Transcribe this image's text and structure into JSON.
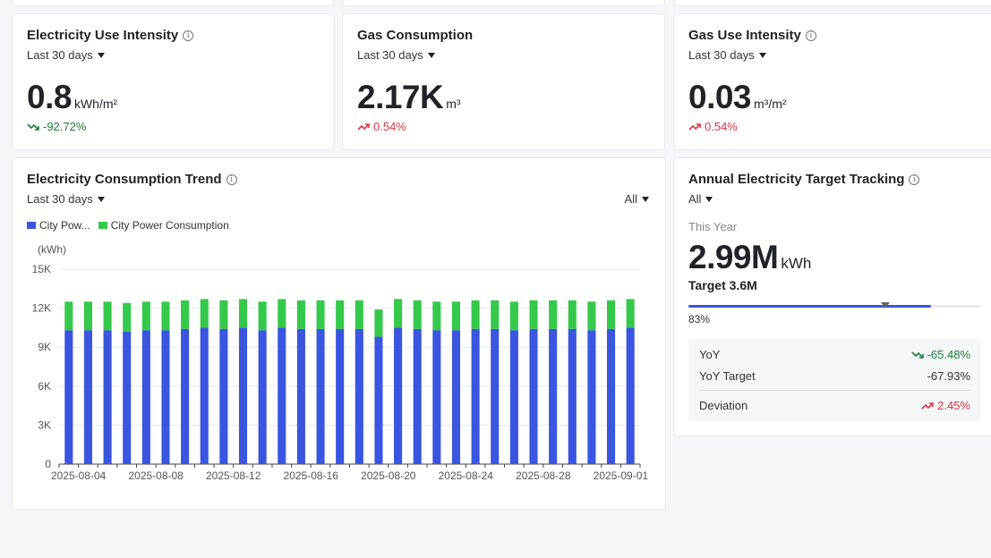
{
  "cards": {
    "elec_intensity": {
      "title": "Electricity Use Intensity",
      "period": "Last 30 days",
      "value": "0.8",
      "unit": "kWh/m²",
      "change": "-92.72%",
      "direction": "down"
    },
    "gas_consumption": {
      "title": "Gas Consumption",
      "period": "Last 30 days",
      "value": "2.17K",
      "unit": "m³",
      "change": "0.54%",
      "direction": "up"
    },
    "gas_intensity": {
      "title": "Gas Use Intensity",
      "period": "Last 30 days",
      "value": "0.03",
      "unit": "m³/m²",
      "change": "0.54%",
      "direction": "up"
    }
  },
  "trend": {
    "title": "Electricity Consumption Trend",
    "period": "Last 30 days",
    "filter": "All",
    "legend": [
      {
        "label": "City Pow...",
        "color": "#3a55e0"
      },
      {
        "label": "City Power Consumption",
        "color": "#34c94a"
      }
    ],
    "y_unit": "(kWh)"
  },
  "chart_data": {
    "type": "bar",
    "stacked": true,
    "ylabel": "(kWh)",
    "ylim": [
      0,
      15000
    ],
    "yticks": [
      "0",
      "3K",
      "6K",
      "9K",
      "12K",
      "15K"
    ],
    "ytick_values": [
      0,
      3000,
      6000,
      9000,
      12000,
      15000
    ],
    "x_tick_labels": [
      "2025-08-04",
      "2025-08-08",
      "2025-08-12",
      "2025-08-16",
      "2025-08-20",
      "2025-08-24",
      "2025-08-28",
      "2025-09-01"
    ],
    "categories": [
      "2025-08-03",
      "2025-08-04",
      "2025-08-05",
      "2025-08-06",
      "2025-08-07",
      "2025-08-08",
      "2025-08-09",
      "2025-08-10",
      "2025-08-11",
      "2025-08-12",
      "2025-08-13",
      "2025-08-14",
      "2025-08-15",
      "2025-08-16",
      "2025-08-17",
      "2025-08-18",
      "2025-08-19",
      "2025-08-20",
      "2025-08-21",
      "2025-08-22",
      "2025-08-23",
      "2025-08-24",
      "2025-08-25",
      "2025-08-26",
      "2025-08-27",
      "2025-08-28",
      "2025-08-29",
      "2025-08-30",
      "2025-08-31",
      "2025-09-01"
    ],
    "series": [
      {
        "name": "City Pow...",
        "color": "#3a55e0",
        "values": [
          10300,
          10300,
          10300,
          10200,
          10300,
          10300,
          10400,
          10500,
          10400,
          10500,
          10300,
          10500,
          10400,
          10400,
          10400,
          10400,
          9800,
          10500,
          10400,
          10300,
          10300,
          10400,
          10400,
          10300,
          10400,
          10400,
          10400,
          10300,
          10400,
          10500
        ]
      },
      {
        "name": "City Power Consumption",
        "color": "#34c94a",
        "values": [
          2200,
          2200,
          2200,
          2200,
          2200,
          2200,
          2200,
          2200,
          2200,
          2200,
          2200,
          2200,
          2200,
          2200,
          2200,
          2200,
          2100,
          2200,
          2200,
          2200,
          2200,
          2200,
          2200,
          2200,
          2200,
          2200,
          2200,
          2200,
          2200,
          2200
        ]
      }
    ]
  },
  "annual": {
    "title": "Annual Electricity Target Tracking",
    "filter": "All",
    "this_year_label": "This Year",
    "value": "2.99M",
    "unit": "kWh",
    "target": "Target 3.6M",
    "progress_fraction": 0.83,
    "progress_label": "83%",
    "stats": {
      "yoy_label": "YoY",
      "yoy_value": "-65.48%",
      "yoy_target_label": "YoY Target",
      "yoy_target_value": "-67.93%",
      "deviation_label": "Deviation",
      "deviation_value": "2.45%"
    }
  },
  "icons": {
    "info": "info-circle-icon",
    "dropdown": "caret-down-icon",
    "trend_down": "trend-down-icon",
    "trend_up": "trend-up-icon"
  }
}
